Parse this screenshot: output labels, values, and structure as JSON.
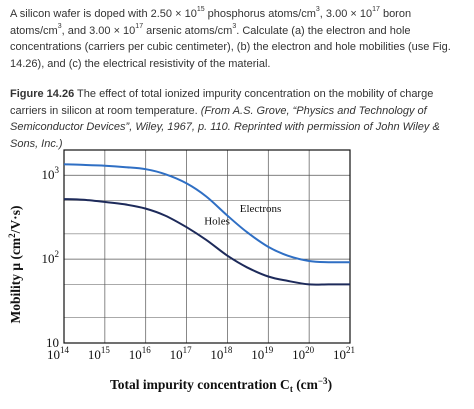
{
  "problem": {
    "p1": "A silicon wafer is doped with 2.50 × 10",
    "e1": "15",
    "p2": " phosphorus atoms/cm",
    "e2": "3",
    "p3": ", 3.00 × 10",
    "e3": "17",
    "p4": " boron atoms/cm",
    "e4": "3",
    "p5": ", and 3.00 × 10",
    "e5": "17",
    "p6": " arsenic atoms/cm",
    "e6": "3",
    "p7": ". Calculate (a) the electron and hole concentrations (carriers per cubic centimeter), (b) the electron and hole mobilities (use Fig. 14.26), and (c) the electrical resistivity of the material."
  },
  "caption": {
    "label": "Figure 14.26",
    "text": " The effect of total ionized impurity concentration on the mobility of charge carriers in silicon at room temperature. ",
    "source": "(From A.S. Grove, “Physics and Technology of Semiconductor Devices”, Wiley, 1967, p. 110. Reprinted with permission of John Wiley & Sons, Inc.)"
  },
  "chart_data": {
    "type": "line",
    "xscale": "log",
    "yscale": "log",
    "xlim": [
      100000000000000.0,
      1e+21
    ],
    "ylim": [
      10,
      2000
    ],
    "grid": true,
    "xlabel": {
      "pre": "Total impurity concentration C",
      "sub": "t",
      "mid": " (cm",
      "sup": "−3",
      "post": ")"
    },
    "ylabel": {
      "pre": "Mobility μ (cm",
      "sup": "2",
      "post": "/V·s)"
    },
    "x_tick_labels": [
      {
        "base": "10",
        "exp": "14",
        "value": 100000000000000.0
      },
      {
        "base": "10",
        "exp": "15",
        "value": 1000000000000000.0
      },
      {
        "base": "10",
        "exp": "16",
        "value": 1e+16
      },
      {
        "base": "10",
        "exp": "17",
        "value": 1e+17
      },
      {
        "base": "10",
        "exp": "18",
        "value": 1e+18
      },
      {
        "base": "10",
        "exp": "19",
        "value": 1e+19
      },
      {
        "base": "10",
        "exp": "20",
        "value": 1e+20
      },
      {
        "base": "10",
        "exp": "21",
        "value": 1e+21
      }
    ],
    "y_tick_labels": [
      {
        "base": "10",
        "exp": "",
        "value": 10
      },
      {
        "base": "10",
        "exp": "2",
        "value": 100
      },
      {
        "base": "10",
        "exp": "3",
        "value": 1000
      }
    ],
    "series": [
      {
        "name": "Electrons",
        "color": "#2f6fc4",
        "x": [
          100000000000000.0,
          300000000000000.0,
          1000000000000000.0,
          3000000000000000.0,
          1e+16,
          3e+16,
          1e+17,
          3e+17,
          1e+18,
          3e+18,
          1e+19,
          3e+19,
          1e+20,
          3e+20,
          1e+21
        ],
        "y": [
          1350,
          1330,
          1300,
          1250,
          1180,
          1030,
          800,
          560,
          330,
          210,
          140,
          110,
          95,
          92,
          92
        ]
      },
      {
        "name": "Holes",
        "color": "#1d2a5a",
        "x": [
          100000000000000.0,
          300000000000000.0,
          1000000000000000.0,
          3000000000000000.0,
          1e+16,
          3e+16,
          1e+17,
          3e+17,
          1e+18,
          3e+18,
          1e+19,
          3e+19,
          1e+20,
          3e+20,
          1e+21
        ],
        "y": [
          520,
          510,
          480,
          450,
          400,
          330,
          240,
          170,
          110,
          80,
          62,
          55,
          50,
          50,
          50
        ]
      }
    ]
  }
}
